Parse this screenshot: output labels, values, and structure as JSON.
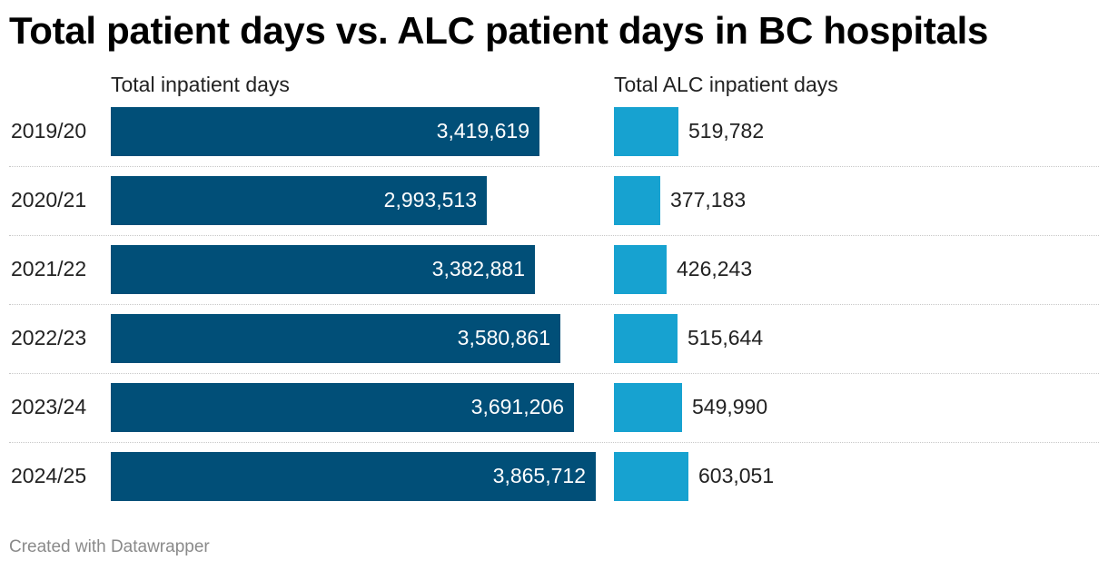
{
  "title": "Total patient days vs. ALC patient days in BC hospitals",
  "footer": "Created with Datawrapper",
  "colors": {
    "total": "#014f78",
    "alc": "#17a2d0"
  },
  "chart_data": {
    "type": "bar",
    "orientation": "horizontal",
    "title": "Total patient days vs. ALC patient days in BC hospitals",
    "categories": [
      "2019/20",
      "2020/21",
      "2021/22",
      "2022/23",
      "2023/24",
      "2024/25"
    ],
    "series": [
      {
        "name": "Total inpatient days",
        "values": [
          3419619,
          2993513,
          3382881,
          3580861,
          3691206,
          3865712
        ],
        "labels": [
          "3,419,619",
          "2,993,513",
          "3,382,881",
          "3,580,861",
          "3,691,206",
          "3,865,712"
        ]
      },
      {
        "name": "Total ALC inpatient days",
        "values": [
          519782,
          377183,
          426243,
          515644,
          549990,
          603051
        ],
        "labels": [
          "519,782",
          "377,183",
          "426,243",
          "515,644",
          "549,990",
          "603,051"
        ]
      }
    ],
    "grid": false,
    "legend": "column-headers"
  }
}
